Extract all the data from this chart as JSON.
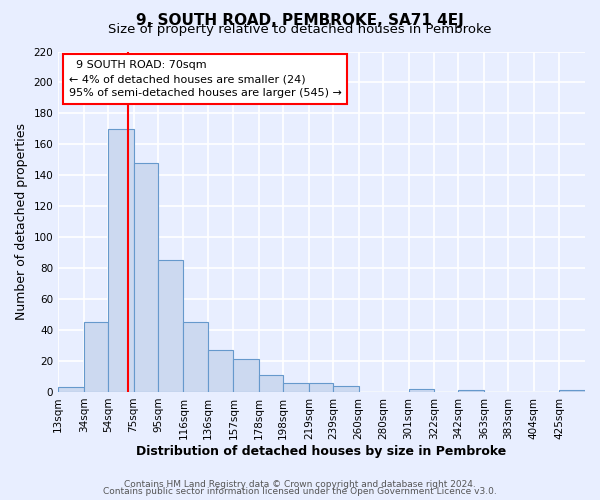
{
  "title": "9, SOUTH ROAD, PEMBROKE, SA71 4EJ",
  "subtitle": "Size of property relative to detached houses in Pembroke",
  "xlabel": "Distribution of detached houses by size in Pembroke",
  "ylabel": "Number of detached properties",
  "footer_line1": "Contains HM Land Registry data © Crown copyright and database right 2024.",
  "footer_line2": "Contains public sector information licensed under the Open Government Licence v3.0.",
  "bar_labels": [
    "13sqm",
    "34sqm",
    "54sqm",
    "75sqm",
    "95sqm",
    "116sqm",
    "136sqm",
    "157sqm",
    "178sqm",
    "198sqm",
    "219sqm",
    "239sqm",
    "260sqm",
    "280sqm",
    "301sqm",
    "322sqm",
    "342sqm",
    "363sqm",
    "383sqm",
    "404sqm",
    "425sqm"
  ],
  "bar_values": [
    3,
    45,
    170,
    148,
    85,
    45,
    27,
    21,
    11,
    6,
    6,
    4,
    0,
    0,
    2,
    0,
    1,
    0,
    0,
    0,
    1
  ],
  "bar_color": "#ccd9f0",
  "bar_edge_color": "#6699cc",
  "property_line_x": 70,
  "property_line_color": "red",
  "annotation_title": "9 SOUTH ROAD: 70sqm",
  "annotation_line1": "← 4% of detached houses are smaller (24)",
  "annotation_line2": "95% of semi-detached houses are larger (545) →",
  "annotation_box_color": "white",
  "annotation_box_edge_color": "red",
  "ylim": [
    0,
    220
  ],
  "yticks": [
    0,
    20,
    40,
    60,
    80,
    100,
    120,
    140,
    160,
    180,
    200,
    220
  ],
  "background_color": "#e8eeff",
  "plot_background_color": "#e8eeff",
  "grid_color": "white",
  "title_fontsize": 11,
  "subtitle_fontsize": 9.5,
  "axis_label_fontsize": 9,
  "tick_fontsize": 7.5,
  "footer_fontsize": 6.5
}
